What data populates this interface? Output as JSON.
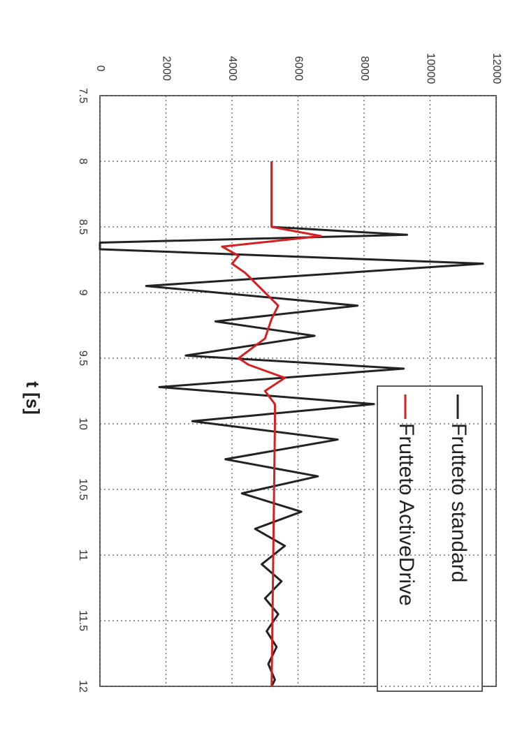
{
  "chart_data": {
    "type": "line",
    "x_label": "t [s]",
    "xlim": [
      7.5,
      12
    ],
    "xticks": [
      7.5,
      8,
      8.5,
      9,
      9.5,
      10,
      10.5,
      11,
      11.5,
      12
    ],
    "ylim": [
      0,
      12000
    ],
    "yticks": [
      0,
      2000,
      4000,
      6000,
      8000,
      10000,
      12000
    ],
    "grid": true,
    "legend": "upper right",
    "series": [
      {
        "name": "Frutteto standard",
        "color": "#222222",
        "x": [
          8,
          8.5,
          8.56,
          8.62,
          8.67,
          8.78,
          8.95,
          9.1,
          9.22,
          9.33,
          9.48,
          9.58,
          9.72,
          9.85,
          9.98,
          10.12,
          10.27,
          10.4,
          10.53,
          10.67,
          10.8,
          10.93,
          11.07,
          11.2,
          11.33,
          11.45,
          11.58,
          11.7,
          11.83,
          11.95,
          12
        ],
        "values": [
          5200,
          5200,
          9300,
          0,
          0,
          11600,
          1400,
          7800,
          3500,
          6500,
          2600,
          9200,
          1800,
          8300,
          2800,
          7200,
          3800,
          6600,
          4300,
          6100,
          4700,
          5600,
          4900,
          5500,
          5000,
          5400,
          5050,
          5350,
          5100,
          5300,
          5200
        ]
      },
      {
        "name": "Frutteto ActiveDrive",
        "color": "#d42020",
        "x": [
          8,
          8.5,
          8.57,
          8.65,
          8.72,
          8.78,
          8.85,
          9.0,
          9.1,
          9.2,
          9.35,
          9.5,
          9.55,
          9.65,
          9.75,
          9.85,
          10,
          12
        ],
        "values": [
          5200,
          5200,
          6700,
          3700,
          4200,
          4000,
          4400,
          5000,
          5400,
          5200,
          5000,
          4200,
          4500,
          5600,
          5000,
          5300,
          5300,
          5200
        ]
      }
    ]
  }
}
